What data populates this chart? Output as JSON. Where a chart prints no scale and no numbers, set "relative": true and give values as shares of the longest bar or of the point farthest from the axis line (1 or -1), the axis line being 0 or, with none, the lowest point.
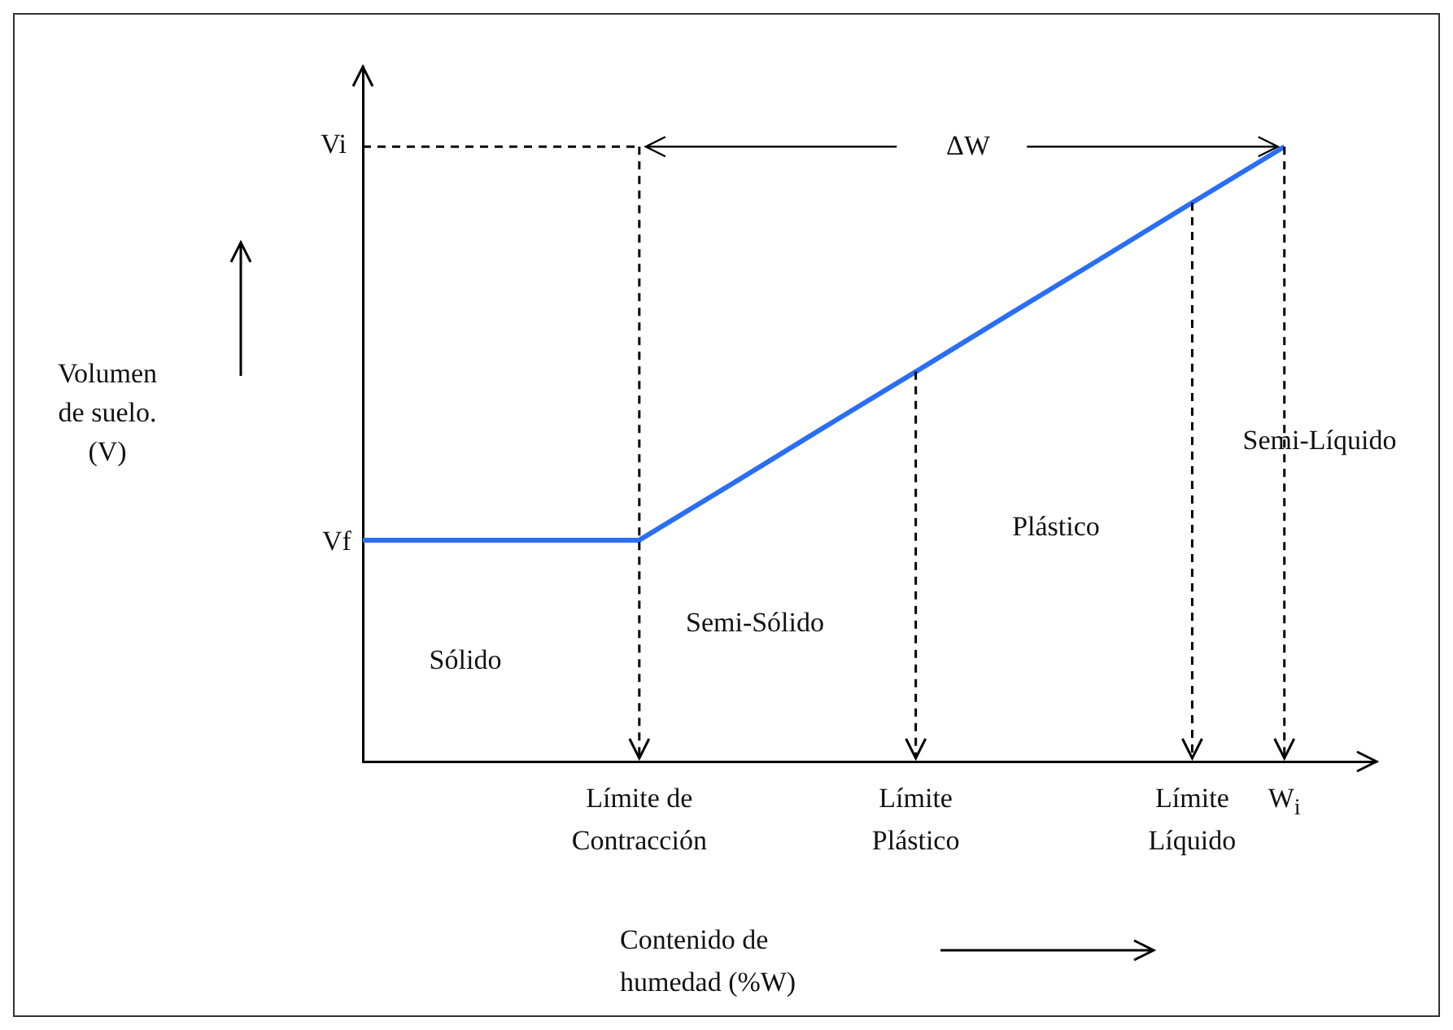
{
  "chart_data": {
    "type": "line",
    "relative": true,
    "xlabel": "Contenido de humedad (%W)",
    "categories": [
      null,
      null,
      null,
      "Límite de Contracción",
      null,
      null,
      "Límite Plástico",
      null,
      null,
      "Límite Líquido",
      "W$_{i}$",
      null
    ],
    "series": [
      {
        "color": "#2a6ef5",
        "values": [
          0.36,
          0.36,
          0.36,
          0.36,
          0.451,
          0.543,
          0.634,
          0.726,
          0.817,
          0.909,
          1,
          null
        ]
      }
    ],
    "ref_lines": [
      {
        "axis": "y",
        "value": 1,
        "label": "Vi",
        "line_style": "dashed"
      }
    ],
    "annotations": [
      "Sólido",
      "Semi-Sólido",
      "Plástico",
      "Semi-Líquido",
      "ΔW",
      "Vf",
      "Volumen de suelo. (V)"
    ],
    "grid": "x",
    "legend": false,
    "marker": "none",
    "line_style": "solid"
  }
}
